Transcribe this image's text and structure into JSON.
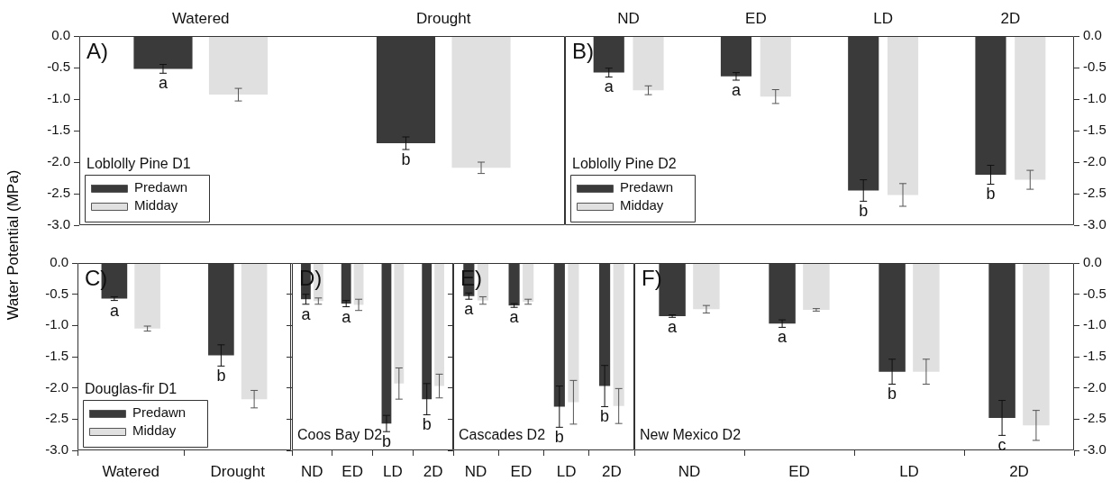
{
  "chart_data": [
    {
      "type": "bar",
      "title": "A)",
      "ylabel": "Water Potential (MPa)",
      "categories": [
        "Watered",
        "Drought"
      ],
      "series": [
        {
          "name": "Predawn",
          "color": "#3a3a3a",
          "values": [
            -0.52,
            -1.7
          ],
          "errors": [
            0.07,
            0.1
          ]
        },
        {
          "name": "Midday",
          "color": "#e0e0e0",
          "values": [
            -0.93,
            -2.09
          ],
          "errors": [
            0.1,
            0.09
          ]
        }
      ],
      "ylim": [
        -3,
        0
      ],
      "yticks": [
        {
          "value": -3,
          "label": "-3.0"
        },
        {
          "value": -2.5,
          "label": "-2.5"
        },
        {
          "value": -2,
          "label": "-2.0"
        },
        {
          "value": -1.5,
          "label": "-1.5"
        },
        {
          "value": -1,
          "label": "-1.0"
        },
        {
          "value": -0.5,
          "label": "-0.5"
        },
        {
          "value": 0,
          "label": "0.0"
        }
      ],
      "legend": "bottom left",
      "legend_title": "Loblolly Pine D1",
      "annotations": [
        "a",
        "b"
      ]
    },
    {
      "type": "bar",
      "title": "B)",
      "categories": [
        "ND",
        "ED",
        "LD",
        "2D"
      ],
      "series": [
        {
          "name": "Predawn",
          "color": "#3a3a3a",
          "values": [
            -0.58,
            -0.64,
            -2.45,
            -2.2
          ],
          "errors": [
            0.07,
            0.06,
            0.17,
            0.15
          ]
        },
        {
          "name": "Midday",
          "color": "#e0e0e0",
          "values": [
            -0.86,
            -0.96,
            -2.52,
            -2.28
          ],
          "errors": [
            0.07,
            0.11,
            0.18,
            0.15
          ]
        }
      ],
      "ylim": [
        -3,
        0
      ],
      "yticks": [
        {
          "value": -3,
          "label": "-3.0"
        },
        {
          "value": -2.5,
          "label": "-2.5"
        },
        {
          "value": -2,
          "label": "-2.0"
        },
        {
          "value": -1.5,
          "label": "-1.5"
        },
        {
          "value": -1,
          "label": "-1.0"
        },
        {
          "value": -0.5,
          "label": "-0.5"
        },
        {
          "value": 0,
          "label": "0.0"
        }
      ],
      "legend": "bottom left",
      "legend_title": "Loblolly Pine D2",
      "annotations": [
        "a",
        "a",
        "b",
        "b"
      ]
    },
    {
      "type": "bar",
      "title": "C)",
      "categories": [
        "Watered",
        "Drought"
      ],
      "series": [
        {
          "name": "Predawn",
          "color": "#3a3a3a",
          "values": [
            -0.57,
            -1.48
          ],
          "errors": [
            0.03,
            0.17
          ]
        },
        {
          "name": "Midday",
          "color": "#e0e0e0",
          "values": [
            -1.05,
            -2.18
          ],
          "errors": [
            0.04,
            0.14
          ]
        }
      ],
      "ylim": [
        -3,
        0
      ],
      "yticks": [
        {
          "value": -3,
          "label": "-3.0"
        },
        {
          "value": -2.5,
          "label": "-2.5"
        },
        {
          "value": -2,
          "label": "-2.0"
        },
        {
          "value": -1.5,
          "label": "-1.5"
        },
        {
          "value": -1,
          "label": "-1.0"
        },
        {
          "value": -0.5,
          "label": "-0.5"
        },
        {
          "value": 0,
          "label": "0.0"
        }
      ],
      "legend": "bottom left",
      "legend_title": "Douglas-fir D1",
      "annotations": [
        "a",
        "b"
      ]
    },
    {
      "type": "bar",
      "title": "D)",
      "subtitle": "Coos Bay D2",
      "categories": [
        "ND",
        "ED",
        "LD",
        "2D"
      ],
      "series": [
        {
          "color": "#3a3a3a",
          "values": [
            -0.58,
            -0.65,
            -2.57,
            -2.18
          ],
          "errors": [
            0.08,
            0.05,
            0.13,
            0.25
          ]
        },
        {
          "color": "#e0e0e0",
          "values": [
            -0.61,
            -0.67,
            -1.93,
            -1.97
          ],
          "errors": [
            0.05,
            0.09,
            0.25,
            0.19
          ]
        }
      ],
      "ylim": [
        -3,
        0
      ],
      "yticks": [
        {
          "value": -3,
          "label": null
        },
        {
          "value": -2.5,
          "label": null
        },
        {
          "value": -2,
          "label": null
        },
        {
          "value": -1.5,
          "label": null
        },
        {
          "value": -1,
          "label": null
        },
        {
          "value": -0.5,
          "label": null
        },
        {
          "value": 0,
          "label": null
        }
      ],
      "tick_labels": "x",
      "annotations": [
        "a",
        "a",
        "b",
        "b"
      ]
    },
    {
      "type": "bar",
      "title": "E)",
      "subtitle": "Cascades D2",
      "categories": [
        "ND",
        "ED",
        "LD",
        "2D"
      ],
      "series": [
        {
          "color": "#3a3a3a",
          "values": [
            -0.53,
            -0.68,
            -2.3,
            -1.97
          ],
          "errors": [
            0.05,
            0.03,
            0.33,
            0.33
          ]
        },
        {
          "color": "#e0e0e0",
          "values": [
            -0.6,
            -0.62,
            -2.23,
            -2.29
          ],
          "errors": [
            0.06,
            0.04,
            0.35,
            0.28
          ]
        }
      ],
      "ylim": [
        -3,
        0
      ],
      "yticks": [
        {
          "value": -3,
          "label": null
        },
        {
          "value": -2.5,
          "label": null
        },
        {
          "value": -2,
          "label": null
        },
        {
          "value": -1.5,
          "label": null
        },
        {
          "value": -1,
          "label": null
        },
        {
          "value": -0.5,
          "label": null
        },
        {
          "value": 0,
          "label": null
        }
      ],
      "tick_labels": "x",
      "annotations": [
        "a",
        "a",
        "b",
        "b"
      ]
    },
    {
      "type": "bar",
      "title": "F)",
      "subtitle": "New Mexico D2",
      "categories": [
        "ND",
        "ED",
        "LD",
        "2D"
      ],
      "series": [
        {
          "color": "#3a3a3a",
          "values": [
            -0.85,
            -0.97,
            -1.74,
            -2.48
          ],
          "errors": [
            0.02,
            0.06,
            0.2,
            0.28
          ]
        },
        {
          "color": "#e0e0e0",
          "values": [
            -0.74,
            -0.75,
            -1.74,
            -2.6
          ],
          "errors": [
            0.06,
            0.02,
            0.2,
            0.24
          ]
        }
      ],
      "ylim": [
        -3,
        0
      ],
      "yticks": [
        {
          "value": -3,
          "label": "-3.0"
        },
        {
          "value": -2.5,
          "label": "-2.5"
        },
        {
          "value": -2,
          "label": "-2.0"
        },
        {
          "value": -1.5,
          "label": "-1.5"
        },
        {
          "value": -1,
          "label": "-1.0"
        },
        {
          "value": -0.5,
          "label": "-0.5"
        },
        {
          "value": 0,
          "label": "0.0"
        }
      ],
      "annotations": [
        "a",
        "a",
        "b",
        "c"
      ]
    }
  ]
}
